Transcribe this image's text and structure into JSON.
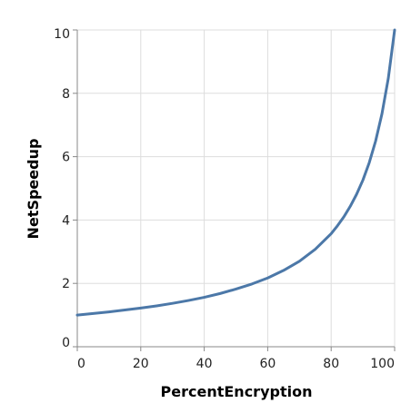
{
  "chart_data": {
    "type": "line",
    "xlabel": "PercentEncryption",
    "ylabel": "NetSpeedup",
    "xlim": [
      0,
      100
    ],
    "ylim": [
      0,
      10
    ],
    "grid": true,
    "x_ticks": [
      "0",
      "20",
      "40",
      "60",
      "80",
      "100"
    ],
    "y_ticks": [
      "0",
      "2",
      "4",
      "6",
      "8",
      "10"
    ],
    "series": [
      {
        "color": "#4c78a8",
        "x": [
          0,
          5,
          10,
          15,
          20,
          25,
          30,
          35,
          40,
          45,
          50,
          55,
          60,
          65,
          70,
          75,
          80,
          82,
          84,
          86,
          88,
          90,
          92,
          94,
          96,
          98,
          100
        ],
        "y": [
          1.0,
          1.05,
          1.1,
          1.16,
          1.22,
          1.29,
          1.37,
          1.46,
          1.56,
          1.68,
          1.82,
          1.98,
          2.17,
          2.41,
          2.7,
          3.08,
          3.57,
          3.82,
          4.1,
          4.43,
          4.81,
          5.26,
          5.81,
          6.49,
          7.35,
          8.47,
          10.0
        ]
      }
    ]
  }
}
